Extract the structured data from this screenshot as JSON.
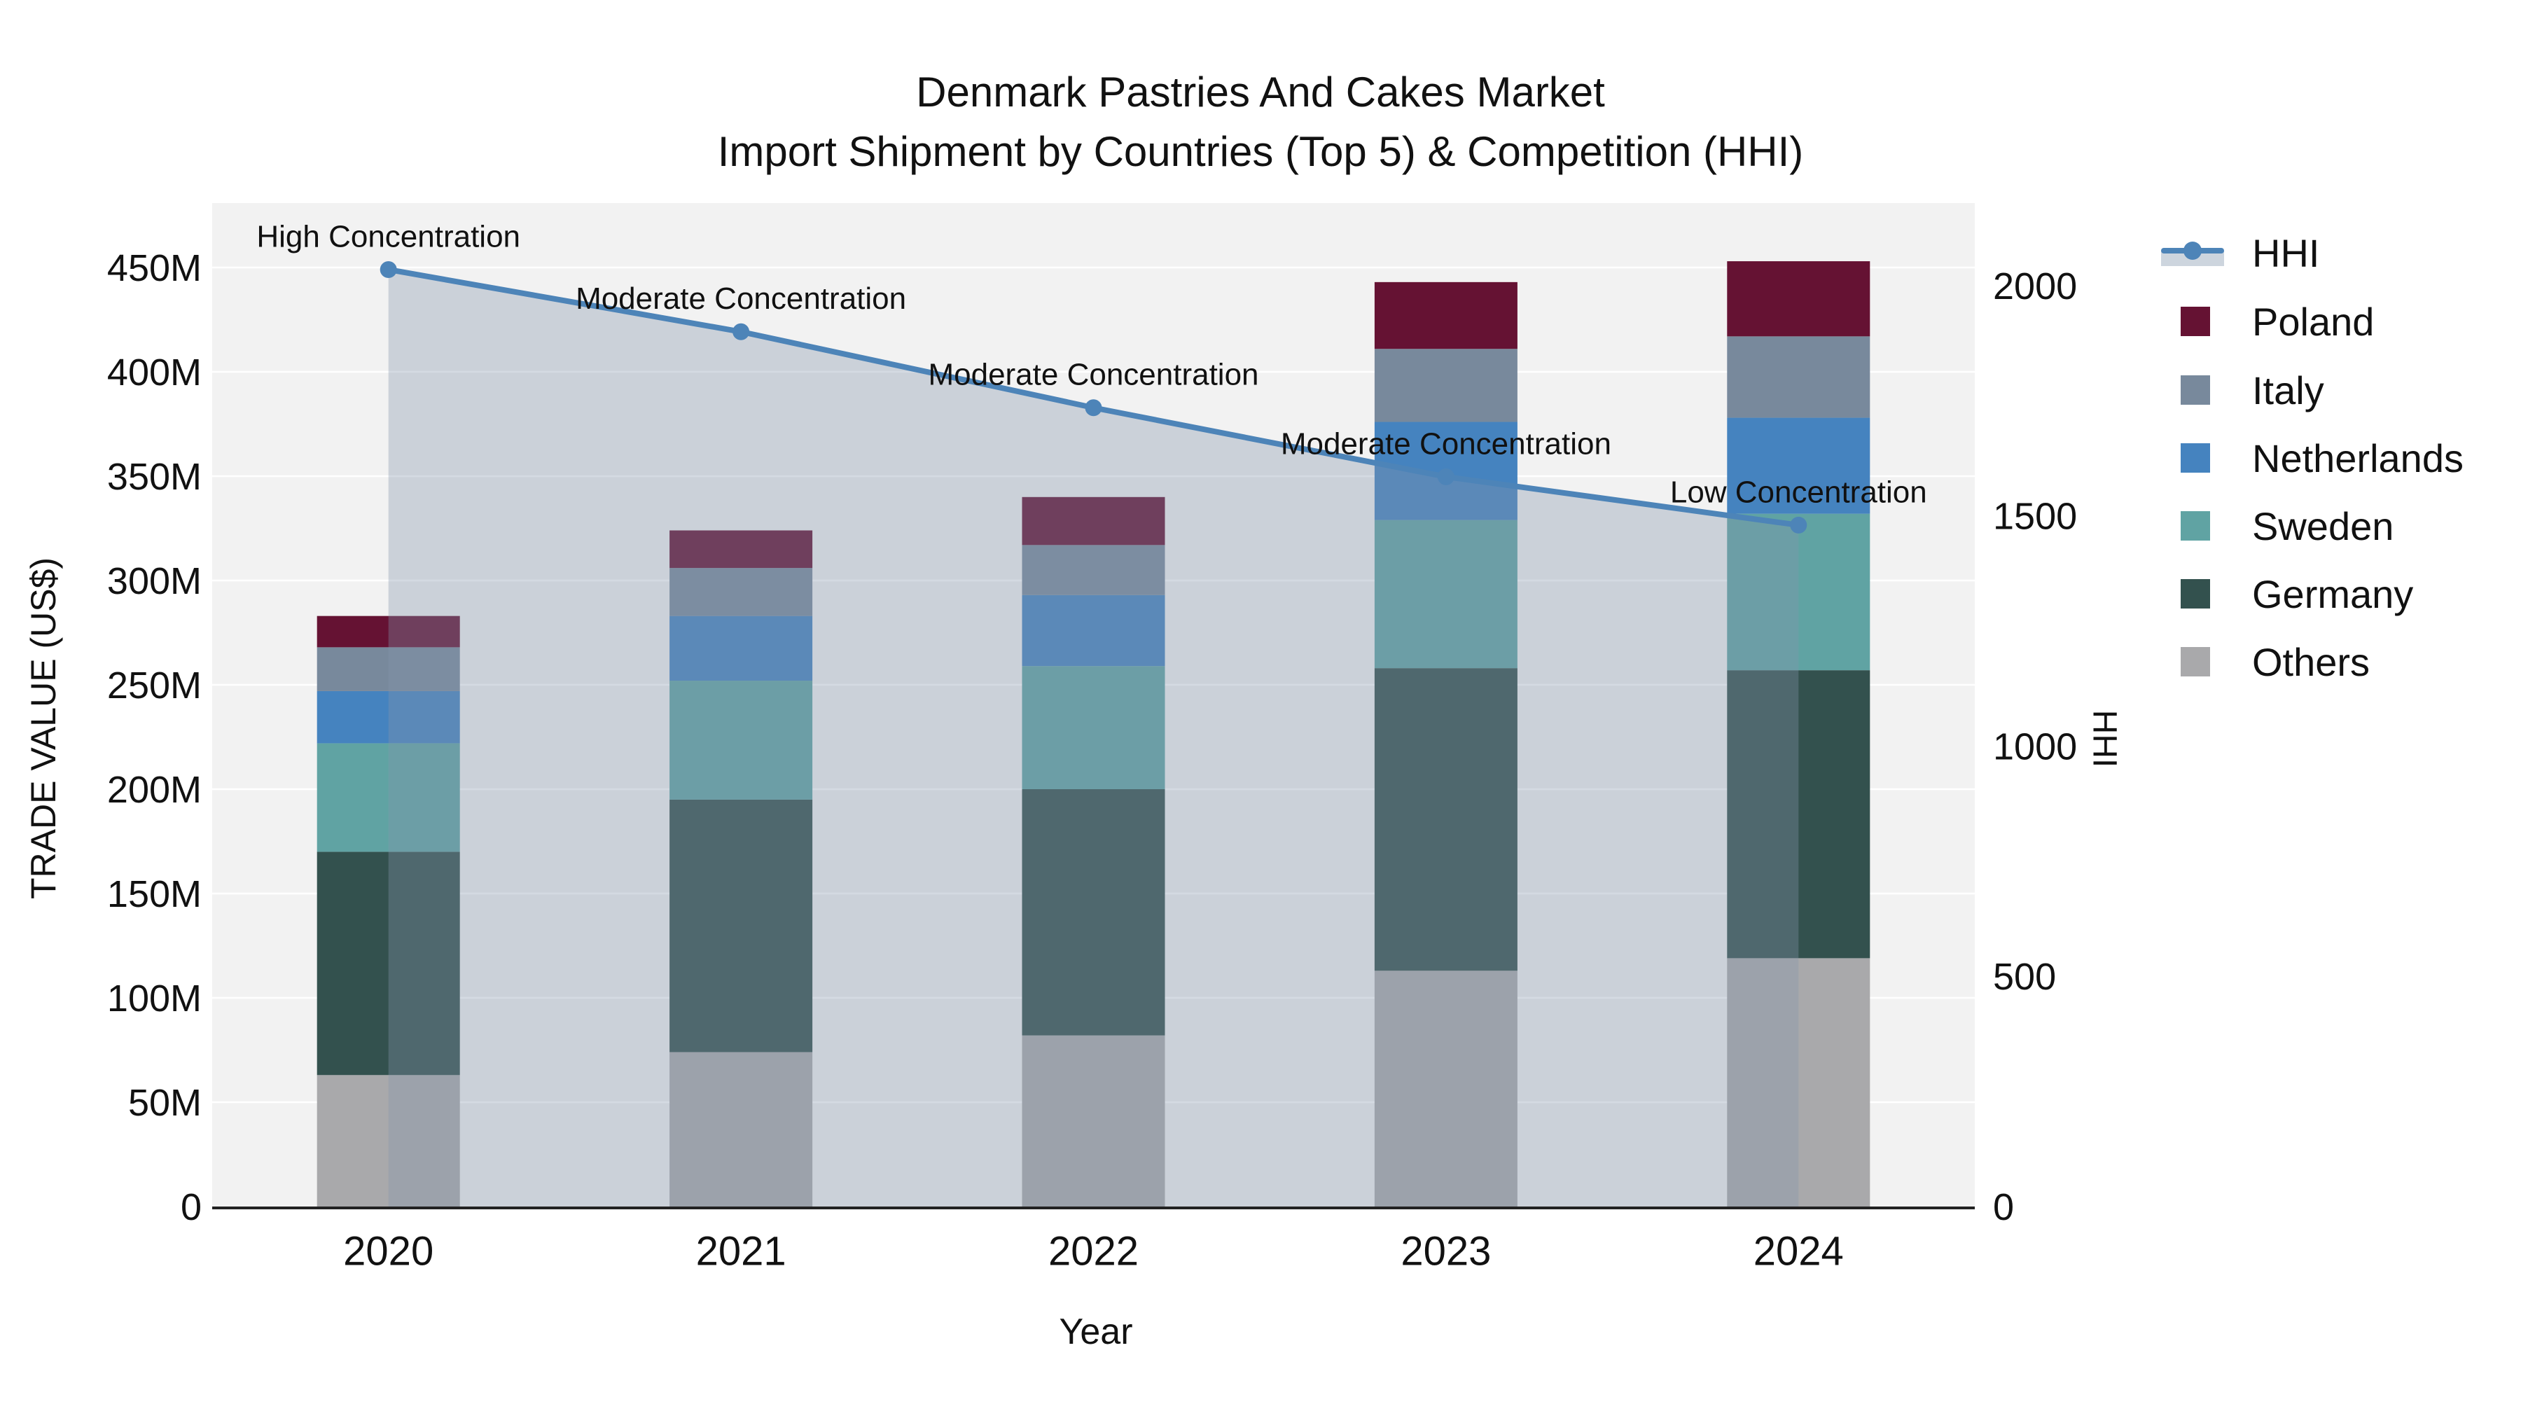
{
  "title": {
    "line1": "Denmark Pastries And Cakes Market",
    "line2": "Import Shipment by Countries (Top 5) & Competition (HHI)"
  },
  "axes": {
    "x": {
      "title": "Year",
      "categories": [
        "2020",
        "2021",
        "2022",
        "2023",
        "2024"
      ]
    },
    "y_left": {
      "title": "TRADE VALUE (US$)",
      "unit": "US$ millions",
      "range": [
        0,
        481
      ],
      "ticks": [
        {
          "label": "0",
          "value": 0
        },
        {
          "label": "50M",
          "value": 50
        },
        {
          "label": "100M",
          "value": 100
        },
        {
          "label": "150M",
          "value": 150
        },
        {
          "label": "200M",
          "value": 200
        },
        {
          "label": "250M",
          "value": 250
        },
        {
          "label": "300M",
          "value": 300
        },
        {
          "label": "350M",
          "value": 350
        },
        {
          "label": "400M",
          "value": 400
        },
        {
          "label": "450M",
          "value": 450
        }
      ]
    },
    "y_right": {
      "title": "HHI",
      "range": [
        0,
        2180
      ],
      "ticks": [
        {
          "label": "0",
          "value": 0
        },
        {
          "label": "500",
          "value": 500
        },
        {
          "label": "1000",
          "value": 1000
        },
        {
          "label": "1500",
          "value": 1500
        },
        {
          "label": "2000",
          "value": 2000
        }
      ]
    }
  },
  "legend": {
    "position": "right",
    "items": [
      {
        "label": "HHI",
        "type": "line",
        "color": "#4d84b8"
      },
      {
        "label": "Poland",
        "type": "swatch",
        "color": "#651233"
      },
      {
        "label": "Italy",
        "type": "swatch",
        "color": "#78899c"
      },
      {
        "label": "Netherlands",
        "type": "swatch",
        "color": "#4583bf"
      },
      {
        "label": "Sweden",
        "type": "swatch",
        "color": "#60a3a3"
      },
      {
        "label": "Germany",
        "type": "swatch",
        "color": "#33514e"
      },
      {
        "label": "Others",
        "type": "swatch",
        "color": "#a9a9ab"
      }
    ]
  },
  "chart_data": {
    "type": "bar+line",
    "bar_mode": "stacked",
    "bar_unit": "US$ millions",
    "categories": [
      "2020",
      "2021",
      "2022",
      "2023",
      "2024"
    ],
    "series": [
      {
        "name": "Others",
        "color": "#a9a9ab",
        "values": [
          63,
          74,
          82,
          113,
          119
        ]
      },
      {
        "name": "Germany",
        "color": "#33514e",
        "values": [
          107,
          121,
          118,
          145,
          138
        ]
      },
      {
        "name": "Sweden",
        "color": "#60a3a3",
        "values": [
          52,
          57,
          59,
          71,
          75
        ]
      },
      {
        "name": "Netherlands",
        "color": "#4583bf",
        "values": [
          25,
          31,
          34,
          47,
          46
        ]
      },
      {
        "name": "Italy",
        "color": "#78899c",
        "values": [
          21,
          23,
          24,
          35,
          39
        ]
      },
      {
        "name": "Poland",
        "color": "#651233",
        "values": [
          15,
          18,
          23,
          32,
          36
        ]
      }
    ],
    "stack_totals": [
      283,
      324,
      340,
      443,
      453
    ],
    "line_series": {
      "name": "HHI",
      "axis": "y_right",
      "color": "#4d84b8",
      "area_fill": "rgba(132,148,172,0.35)",
      "marker": "circle",
      "values": [
        2035,
        1900,
        1735,
        1585,
        1480
      ]
    },
    "annotations": [
      {
        "category": "2020",
        "text": "High Concentration"
      },
      {
        "category": "2021",
        "text": "Moderate Concentration"
      },
      {
        "category": "2022",
        "text": "Moderate Concentration"
      },
      {
        "category": "2023",
        "text": "Moderate Concentration"
      },
      {
        "category": "2024",
        "text": "Low Concentration"
      }
    ],
    "grid": "horizontal, white, 50M steps",
    "legend_position": "right"
  },
  "colors": {
    "figure_bg": "#ffffff",
    "plot_bg": "#f2f2f2",
    "gridline": "#ffffff",
    "axis_line": "#222222",
    "text": "#111111"
  }
}
